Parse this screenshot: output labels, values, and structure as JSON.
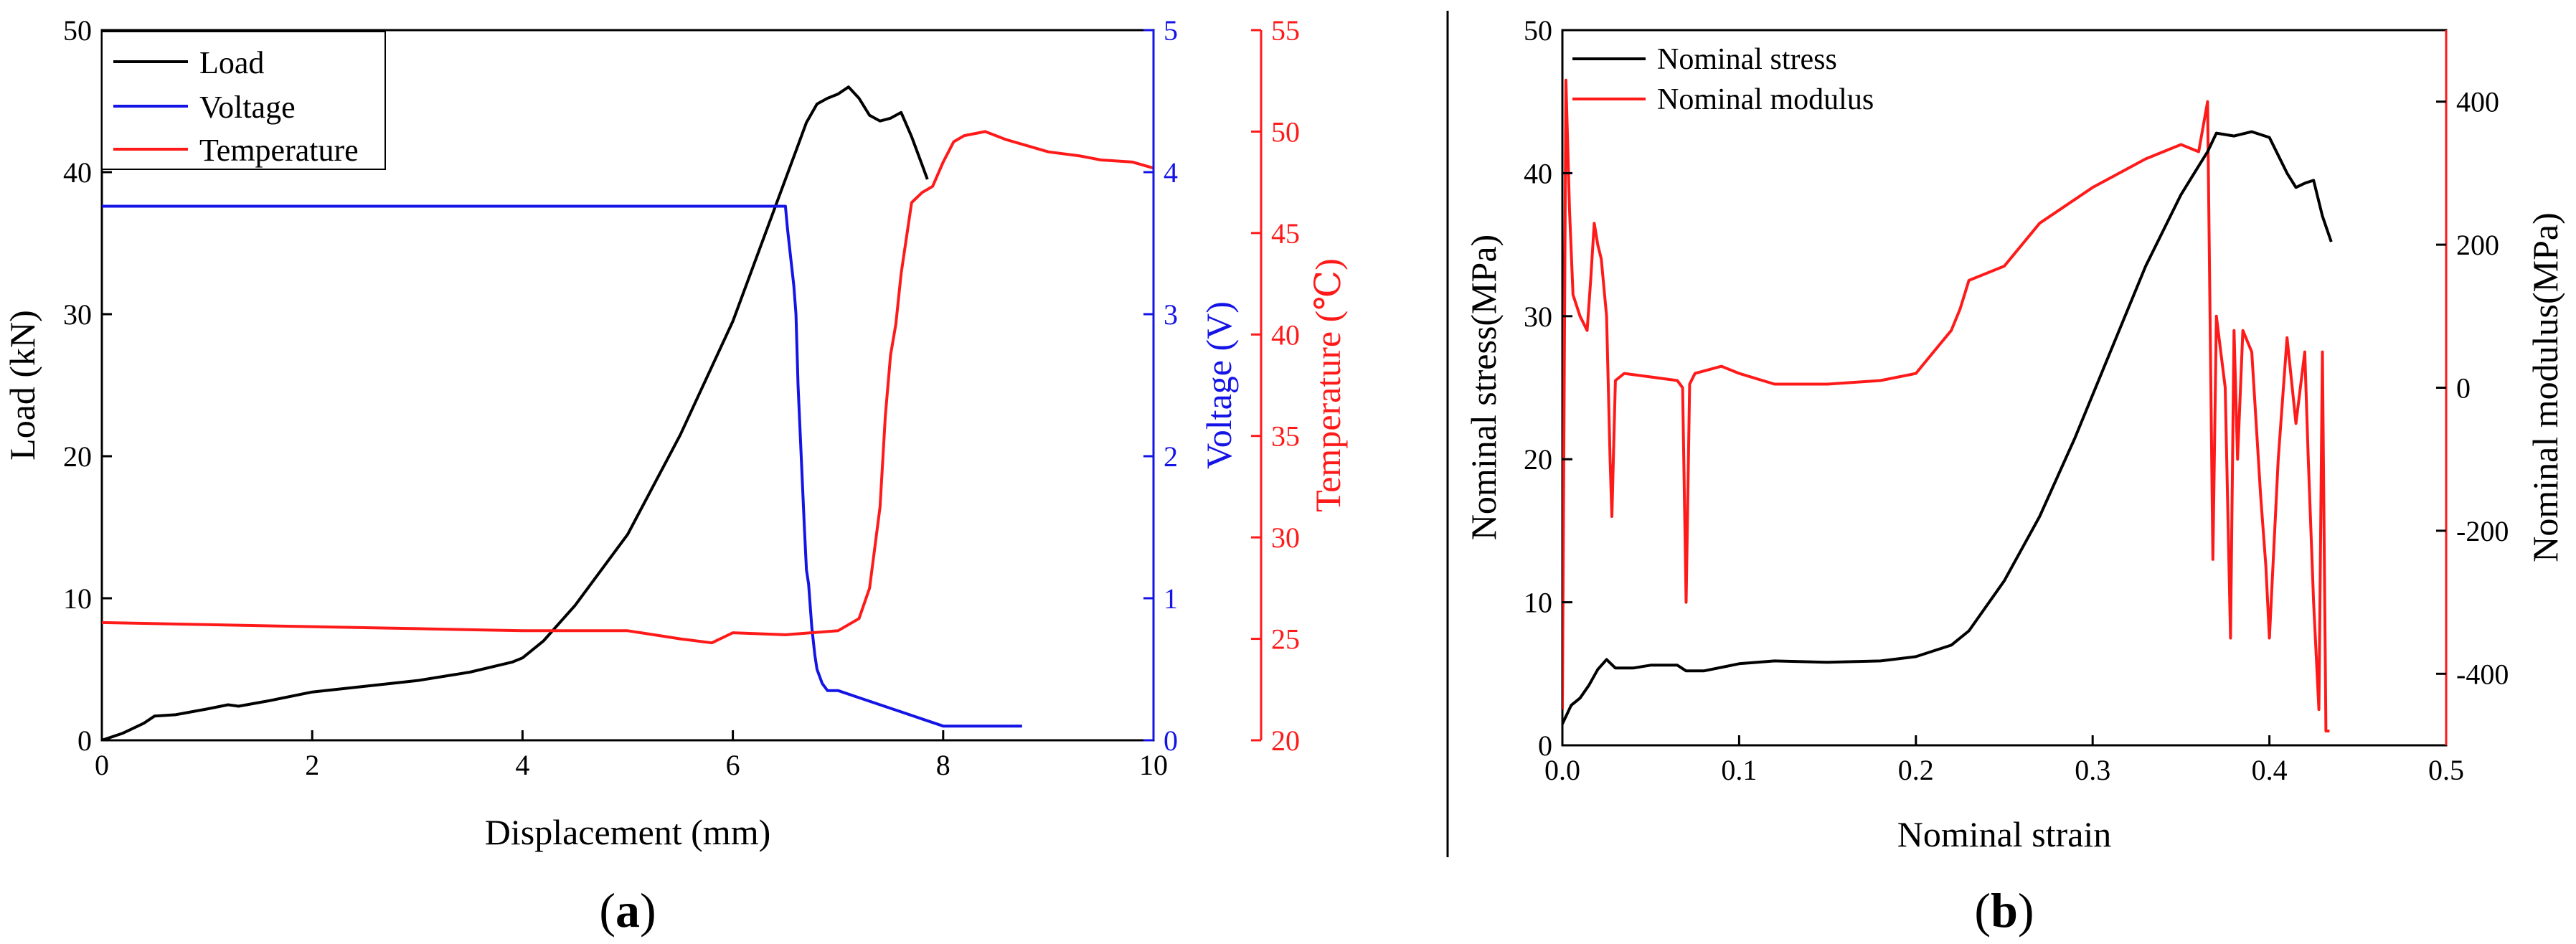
{
  "colors": {
    "black": "#000000",
    "blue": "#1414e6",
    "red": "#ff1a1a",
    "divider": "#000000"
  },
  "chart_data": [
    {
      "panel_label": "(a)",
      "panel_letter": "a",
      "type": "line",
      "xlabel": "Displacement (mm)",
      "xlim": [
        0,
        10
      ],
      "xticks": [
        0,
        2,
        4,
        6,
        8,
        10
      ],
      "axes": {
        "load": {
          "label": "Load (kN)",
          "lim": [
            0,
            50
          ],
          "ticks": [
            0,
            10,
            20,
            30,
            40,
            50
          ],
          "color": "#000000"
        },
        "voltage": {
          "label": "Voltage (V)",
          "lim": [
            0,
            5
          ],
          "ticks": [
            0,
            1,
            2,
            3,
            4,
            5
          ],
          "color": "#1414e6"
        },
        "temperature": {
          "label": "Temperature (℃)",
          "lim": [
            20,
            55
          ],
          "ticks": [
            20,
            25,
            30,
            35,
            40,
            45,
            50,
            55
          ],
          "color": "#ff1a1a"
        }
      },
      "legend": [
        "Load",
        "Voltage",
        "Temperature"
      ],
      "series": [
        {
          "name": "Load",
          "axis": "load",
          "color": "#000000",
          "x": [
            0,
            0.2,
            0.4,
            0.5,
            0.7,
            1.0,
            1.2,
            1.3,
            1.6,
            2.0,
            2.5,
            3.0,
            3.5,
            3.9,
            4.0,
            4.2,
            4.5,
            5.0,
            5.5,
            6.0,
            6.3,
            6.5,
            6.6,
            6.7,
            6.8,
            6.9,
            7.0,
            7.1,
            7.2,
            7.3,
            7.4,
            7.5,
            7.6,
            7.7,
            7.8,
            7.85
          ],
          "y": [
            0,
            0.5,
            1.2,
            1.7,
            1.8,
            2.2,
            2.5,
            2.4,
            2.8,
            3.4,
            3.8,
            4.2,
            4.8,
            5.5,
            5.8,
            7.0,
            9.5,
            14.5,
            21.5,
            29.5,
            35.5,
            39.5,
            41.5,
            43.5,
            44.8,
            45.2,
            45.5,
            46.0,
            45.2,
            44.0,
            43.6,
            43.8,
            44.2,
            42.5,
            40.5,
            39.5
          ]
        },
        {
          "name": "Voltage",
          "axis": "voltage",
          "color": "#1414e6",
          "x": [
            0,
            6.5,
            6.52,
            6.55,
            6.58,
            6.6,
            6.62,
            6.65,
            6.68,
            6.7,
            6.72,
            6.75,
            6.78,
            6.8,
            6.85,
            6.9,
            7.0,
            7.2,
            7.4,
            7.6,
            7.8,
            8.0,
            8.5,
            8.75
          ],
          "y": [
            3.76,
            3.76,
            3.6,
            3.4,
            3.2,
            3.0,
            2.5,
            2.0,
            1.5,
            1.2,
            1.1,
            0.8,
            0.6,
            0.5,
            0.4,
            0.35,
            0.35,
            0.3,
            0.25,
            0.2,
            0.15,
            0.1,
            0.1,
            0.1
          ]
        },
        {
          "name": "Temperature",
          "axis": "temperature",
          "color": "#ff1a1a",
          "x": [
            0,
            1,
            2,
            3,
            4,
            5,
            5.5,
            5.8,
            6.0,
            6.5,
            7.0,
            7.2,
            7.3,
            7.4,
            7.45,
            7.5,
            7.55,
            7.6,
            7.7,
            7.8,
            7.9,
            8.0,
            8.1,
            8.2,
            8.4,
            8.6,
            8.8,
            9.0,
            9.3,
            9.5,
            9.8,
            10.0
          ],
          "y": [
            25.8,
            25.7,
            25.6,
            25.5,
            25.4,
            25.4,
            25.0,
            24.8,
            25.3,
            25.2,
            25.4,
            26.0,
            27.5,
            31.5,
            36.0,
            39.0,
            40.5,
            43.0,
            46.5,
            47.0,
            47.3,
            48.5,
            49.5,
            49.8,
            50.0,
            49.6,
            49.3,
            49.0,
            48.8,
            48.6,
            48.5,
            48.2
          ]
        }
      ]
    },
    {
      "panel_label": "(b)",
      "panel_letter": "b",
      "type": "line",
      "xlabel": "Nominal strain",
      "xlim": [
        0,
        0.5
      ],
      "xticks": [
        0.0,
        0.1,
        0.2,
        0.3,
        0.4,
        0.5
      ],
      "xtick_labels": [
        "0.0",
        "0.1",
        "0.2",
        "0.3",
        "0.4",
        "0.5"
      ],
      "axes": {
        "stress": {
          "label": "Nominal stress(MPa)",
          "lim": [
            0,
            50
          ],
          "ticks": [
            0,
            10,
            20,
            30,
            40,
            50
          ],
          "color": "#000000"
        },
        "modulus": {
          "label": "Nominal modulus(MPa)",
          "lim": [
            -500,
            500
          ],
          "ticks": [
            -400,
            -200,
            0,
            200,
            400
          ],
          "color": "#ff1a1a"
        }
      },
      "legend": [
        "Nominal stress",
        "Nominal modulus"
      ],
      "series": [
        {
          "name": "Nominal stress",
          "axis": "stress",
          "color": "#000000",
          "x": [
            0,
            0.005,
            0.01,
            0.015,
            0.02,
            0.025,
            0.03,
            0.04,
            0.05,
            0.065,
            0.07,
            0.08,
            0.1,
            0.12,
            0.15,
            0.18,
            0.2,
            0.22,
            0.23,
            0.25,
            0.27,
            0.29,
            0.31,
            0.33,
            0.35,
            0.36,
            0.365,
            0.37,
            0.38,
            0.39,
            0.4,
            0.41,
            0.415,
            0.42,
            0.425,
            0.43,
            0.435
          ],
          "y": [
            1.5,
            2.8,
            3.3,
            4.2,
            5.3,
            6.0,
            5.4,
            5.4,
            5.6,
            5.6,
            5.2,
            5.2,
            5.7,
            5.9,
            5.8,
            5.9,
            6.2,
            7.0,
            8.0,
            11.5,
            16.0,
            21.5,
            27.5,
            33.5,
            38.5,
            40.5,
            41.5,
            42.8,
            42.6,
            42.9,
            42.5,
            40.0,
            39.0,
            39.3,
            39.5,
            37.0,
            35.2
          ]
        },
        {
          "name": "Nominal modulus",
          "axis": "modulus",
          "color": "#ff1a1a",
          "x": [
            0,
            0.002,
            0.004,
            0.006,
            0.01,
            0.014,
            0.016,
            0.018,
            0.02,
            0.022,
            0.025,
            0.027,
            0.028,
            0.03,
            0.035,
            0.05,
            0.065,
            0.068,
            0.07,
            0.072,
            0.075,
            0.09,
            0.1,
            0.12,
            0.15,
            0.18,
            0.2,
            0.21,
            0.22,
            0.225,
            0.23,
            0.25,
            0.27,
            0.3,
            0.33,
            0.35,
            0.36,
            0.365,
            0.368,
            0.37,
            0.372,
            0.375,
            0.378,
            0.38,
            0.382,
            0.385,
            0.39,
            0.395,
            0.398,
            0.4,
            0.405,
            0.41,
            0.415,
            0.42,
            0.422,
            0.425,
            0.428,
            0.43,
            0.432,
            0.434
          ],
          "y": [
            -450,
            430,
            250,
            130,
            100,
            80,
            150,
            230,
            200,
            180,
            100,
            -100,
            -180,
            10,
            20,
            15,
            10,
            0,
            -300,
            5,
            20,
            30,
            20,
            5,
            5,
            10,
            20,
            50,
            80,
            110,
            150,
            170,
            230,
            280,
            320,
            340,
            330,
            400,
            -240,
            100,
            60,
            0,
            -350,
            80,
            -100,
            80,
            50,
            -150,
            -250,
            -350,
            -100,
            70,
            -50,
            50,
            -100,
            -300,
            -450,
            50,
            -480,
            -480
          ]
        }
      ]
    }
  ]
}
